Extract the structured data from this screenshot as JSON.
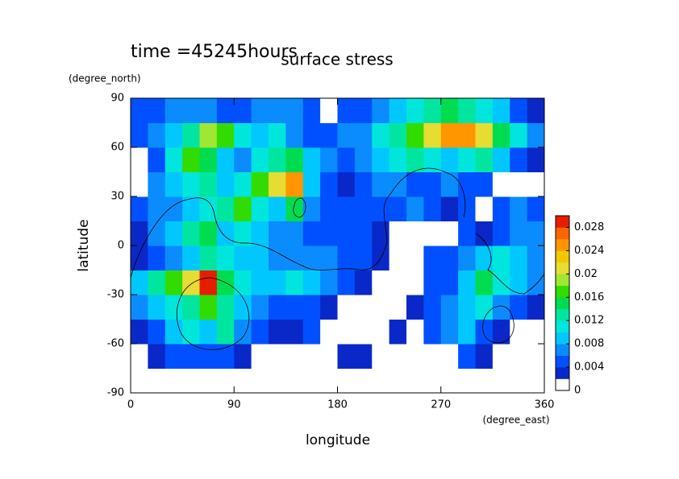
{
  "chart_data": {
    "type": "contour",
    "title": "surface stress",
    "annotation": "time =45245hours",
    "xlabel": "longitude",
    "xunit": "(degree_east)",
    "ylabel": "latitude",
    "yunit": "(degree_north)",
    "xlim": [
      0,
      360
    ],
    "ylim": [
      -90,
      90
    ],
    "xticks": [
      0,
      90,
      180,
      270,
      360
    ],
    "yticks": [
      -90,
      -60,
      -30,
      0,
      30,
      60,
      90
    ],
    "x": [
      7.5,
      22.5,
      37.5,
      52.5,
      67.5,
      82.5,
      97.5,
      112.5,
      127.5,
      142.5,
      157.5,
      172.5,
      187.5,
      202.5,
      217.5,
      232.5,
      247.5,
      262.5,
      277.5,
      292.5,
      307.5,
      322.5,
      337.5,
      352.5
    ],
    "y": [
      -82.5,
      -67.5,
      -52.5,
      -37.5,
      -22.5,
      -7.5,
      7.5,
      22.5,
      37.5,
      52.5,
      67.5,
      82.5
    ],
    "z": [
      [
        0,
        0,
        0,
        0,
        0,
        0,
        0,
        0,
        0,
        0,
        0,
        0,
        0,
        0,
        0,
        0,
        0,
        0,
        0,
        0,
        0,
        0,
        0,
        0
      ],
      [
        0,
        0.002,
        0.004,
        0.004,
        0.004,
        0.004,
        0.003,
        0,
        0,
        0,
        0,
        0,
        0.002,
        0.003,
        0,
        0,
        0,
        0,
        0,
        0.004,
        0.002,
        0,
        0,
        0
      ],
      [
        0.002,
        0.004,
        0.008,
        0.01,
        0.008,
        0.012,
        0.006,
        0.004,
        0.002,
        0.002,
        0.004,
        0,
        0,
        0,
        0,
        0.002,
        0,
        0.004,
        0.006,
        0.008,
        0.004,
        0.003,
        0,
        0
      ],
      [
        0.006,
        0.008,
        0.01,
        0.012,
        0.016,
        0.012,
        0.008,
        0.006,
        0.004,
        0.005,
        0.004,
        0.002,
        0,
        0,
        0,
        0,
        0.002,
        0.004,
        0.006,
        0.008,
        0.01,
        0.006,
        0.004,
        0.002
      ],
      [
        0.008,
        0.012,
        0.016,
        0.02,
        0.028,
        0.014,
        0.01,
        0.008,
        0.008,
        0.01,
        0.008,
        0.006,
        0.004,
        0.002,
        0,
        0,
        0,
        0.004,
        0.005,
        0.008,
        0.014,
        0.01,
        0.008,
        0.006
      ],
      [
        0.002,
        0.004,
        0.006,
        0.008,
        0.012,
        0.01,
        0.008,
        0.008,
        0.006,
        0.006,
        0.006,
        0.006,
        0.004,
        0.004,
        0.002,
        0,
        0,
        0.004,
        0.004,
        0.006,
        0.008,
        0.01,
        0.008,
        0.006
      ],
      [
        0.002,
        0.006,
        0.008,
        0.012,
        0.014,
        0.008,
        0.01,
        0.008,
        0.006,
        0.006,
        0.005,
        0.004,
        0.004,
        0.004,
        0.002,
        0,
        0,
        0,
        0,
        0.004,
        0.002,
        0.004,
        0.006,
        0.006
      ],
      [
        0.004,
        0.006,
        0.006,
        0.008,
        0.01,
        0.012,
        0.016,
        0.01,
        0.008,
        0.014,
        0.006,
        0.004,
        0.004,
        0.005,
        0.004,
        0.004,
        0.006,
        0.004,
        0.002,
        0.004,
        0,
        0.004,
        0.006,
        0.004
      ],
      [
        0,
        0.006,
        0.008,
        0.01,
        0.012,
        0.008,
        0.01,
        0.016,
        0.02,
        0.024,
        0.008,
        0.004,
        0.002,
        0.004,
        0.006,
        0.006,
        0.005,
        0.004,
        0.006,
        0.005,
        0.004,
        0,
        0,
        0
      ],
      [
        0,
        0.004,
        0.01,
        0.016,
        0.014,
        0.008,
        0.006,
        0.01,
        0.012,
        0.014,
        0.008,
        0.006,
        0.005,
        0.006,
        0.008,
        0.01,
        0.012,
        0.01,
        0.008,
        0.01,
        0.012,
        0.008,
        0.004,
        0.002
      ],
      [
        0.004,
        0.006,
        0.008,
        0.012,
        0.018,
        0.016,
        0.01,
        0.008,
        0.01,
        0.006,
        0.004,
        0.005,
        0.006,
        0.006,
        0.01,
        0.012,
        0.016,
        0.02,
        0.025,
        0.024,
        0.02,
        0.014,
        0.01,
        0.006
      ],
      [
        0.004,
        0.005,
        0.006,
        0.006,
        0.006,
        0.005,
        0.005,
        0.006,
        0.007,
        0.006,
        0.004,
        0,
        0.004,
        0.005,
        0.006,
        0.008,
        0.01,
        0.012,
        0.014,
        0.012,
        0.01,
        0.008,
        0.005,
        0.003
      ]
    ],
    "colorbar": {
      "lim": [
        0,
        0.03
      ],
      "ticks": [
        0,
        0.004,
        0.008,
        0.012,
        0.016,
        0.02,
        0.024,
        0.028
      ],
      "colors": [
        "#ffffff",
        "#0a28c8",
        "#0050ff",
        "#0a8cff",
        "#00c8ff",
        "#00e6dc",
        "#00e6a0",
        "#00dc50",
        "#32dc00",
        "#a0e632",
        "#e6dc32",
        "#f0c800",
        "#ff9600",
        "#ff6400",
        "#e61e00"
      ]
    }
  }
}
